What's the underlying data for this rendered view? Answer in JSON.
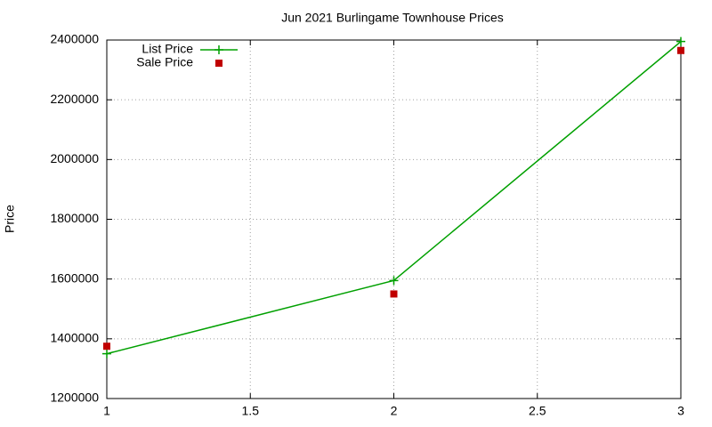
{
  "chart_data": {
    "type": "line",
    "title": "Jun 2021 Burlingame Townhouse Prices",
    "ylabel": "Price",
    "x": [
      1,
      2,
      3
    ],
    "series": [
      {
        "name": "List Price",
        "color": "#00a000",
        "marker": "plus",
        "line": true,
        "values": [
          1350000,
          1595000,
          2395000
        ]
      },
      {
        "name": "Sale Price",
        "color": "#c00000",
        "marker": "square",
        "line": false,
        "values": [
          1375000,
          1550000,
          2365000
        ]
      }
    ],
    "xlim": [
      1,
      3
    ],
    "xticks": [
      1,
      1.5,
      2,
      2.5,
      3
    ],
    "ylim": [
      1200000,
      2400000
    ],
    "yticks": [
      1200000,
      1400000,
      1600000,
      1800000,
      2000000,
      2200000,
      2400000
    ],
    "grid": true,
    "legend": "top-left"
  }
}
